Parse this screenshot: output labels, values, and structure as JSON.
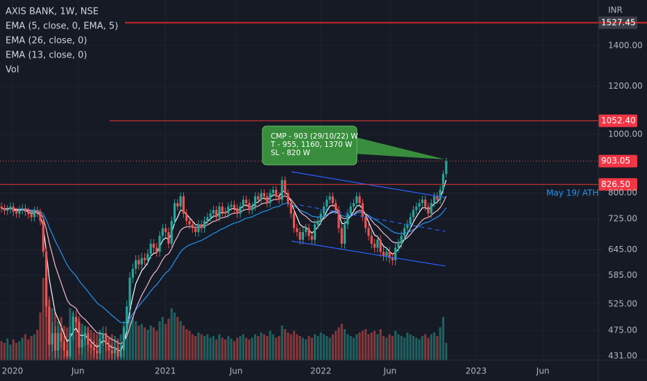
{
  "chart_data": {
    "type": "candlestick",
    "title": "AXIS BANK, 1W, NSE",
    "y_unit": "INR",
    "volume_label": "Vol",
    "up_color": "#26a69a",
    "down_color": "#ef5350",
    "log_scale": true,
    "grid": true,
    "ylim": [
      424,
      1665
    ],
    "yticks": [
      {
        "value": 431,
        "label": "431.00"
      },
      {
        "value": 475,
        "label": "475.00"
      },
      {
        "value": 525,
        "label": "525.00"
      },
      {
        "value": 585,
        "label": "585.00"
      },
      {
        "value": 645,
        "label": "645.00"
      },
      {
        "value": 725,
        "label": "725.00"
      },
      {
        "value": 800,
        "label": "800.00"
      },
      {
        "value": 1000,
        "label": "1000.00"
      },
      {
        "value": 1200,
        "label": "1200.00"
      },
      {
        "value": 1400,
        "label": "1400.00"
      }
    ],
    "xlim": [
      -0.5,
      200
    ],
    "xticks": [
      {
        "value": 3.7,
        "label": "2020"
      },
      {
        "value": 25.6,
        "label": "Jun"
      },
      {
        "value": 54.9,
        "label": "2021"
      },
      {
        "value": 78.6,
        "label": "Jun"
      },
      {
        "value": 107,
        "label": "2022"
      },
      {
        "value": 130.2,
        "label": "Jun"
      },
      {
        "value": 159,
        "label": "2023"
      },
      {
        "value": 181.4,
        "label": "Jun"
      }
    ],
    "open": [
      760,
      755,
      748,
      752,
      760,
      745,
      740,
      750,
      755,
      745,
      738,
      730,
      748,
      742,
      720,
      640,
      520,
      450,
      470,
      440,
      470,
      455,
      440,
      430,
      470,
      500,
      490,
      445,
      460,
      470,
      450,
      445,
      440,
      435,
      460,
      470,
      450,
      440,
      435,
      445,
      430,
      440,
      480,
      520,
      580,
      600,
      620,
      610,
      625,
      620,
      635,
      660,
      650,
      640,
      680,
      700,
      690,
      660,
      720,
      770,
      760,
      790,
      740,
      720,
      710,
      700,
      690,
      710,
      700,
      720,
      730,
      740,
      750,
      730,
      760,
      745,
      740,
      760,
      765,
      755,
      740,
      760,
      780,
      770,
      750,
      760,
      790,
      780,
      800,
      790,
      770,
      800,
      810,
      790,
      780,
      840,
      800,
      770,
      740,
      700,
      690,
      670,
      690,
      700,
      680,
      670,
      710,
      720,
      740,
      760,
      780,
      790,
      770,
      750,
      700,
      660,
      710,
      740,
      760,
      770,
      790,
      770,
      730,
      700,
      680,
      660,
      650,
      670,
      640,
      630,
      640,
      625,
      620,
      650,
      660,
      680,
      700,
      710,
      730,
      750,
      760,
      770,
      780,
      760,
      740,
      770,
      790,
      780,
      810,
      860
    ],
    "high": [
      772,
      767,
      764,
      772,
      772,
      757,
      762,
      767,
      767,
      757,
      750,
      760,
      760,
      754,
      732,
      652,
      540,
      490,
      482,
      482,
      482,
      467,
      452,
      482,
      512,
      512,
      502,
      472,
      482,
      482,
      462,
      457,
      452,
      472,
      482,
      482,
      462,
      452,
      457,
      457,
      452,
      492,
      532,
      592,
      612,
      632,
      632,
      637,
      637,
      647,
      672,
      672,
      662,
      692,
      712,
      712,
      702,
      732,
      782,
      782,
      802,
      802,
      752,
      732,
      722,
      712,
      722,
      722,
      732,
      742,
      752,
      762,
      762,
      772,
      772,
      757,
      772,
      777,
      777,
      767,
      772,
      792,
      792,
      782,
      772,
      802,
      802,
      812,
      812,
      802,
      812,
      822,
      822,
      802,
      852,
      852,
      812,
      782,
      752,
      712,
      702,
      702,
      712,
      712,
      692,
      722,
      732,
      752,
      772,
      792,
      802,
      802,
      782,
      762,
      712,
      722,
      752,
      772,
      782,
      802,
      802,
      782,
      742,
      712,
      692,
      672,
      682,
      682,
      652,
      652,
      652,
      637,
      662,
      672,
      692,
      712,
      722,
      742,
      762,
      772,
      782,
      792,
      792,
      772,
      782,
      802,
      802,
      822,
      872,
      915
    ],
    "low": [
      743,
      736,
      736,
      740,
      733,
      728,
      728,
      738,
      733,
      726,
      718,
      718,
      730,
      708,
      628,
      500,
      430,
      438,
      428,
      428,
      443,
      428,
      426,
      426,
      458,
      478,
      433,
      433,
      448,
      438,
      433,
      428,
      426,
      426,
      448,
      438,
      428,
      426,
      426,
      426,
      426,
      428,
      468,
      508,
      568,
      588,
      598,
      598,
      608,
      608,
      623,
      638,
      628,
      628,
      668,
      678,
      648,
      648,
      708,
      748,
      748,
      728,
      708,
      698,
      688,
      678,
      678,
      688,
      688,
      708,
      718,
      728,
      718,
      718,
      733,
      728,
      728,
      748,
      743,
      728,
      728,
      748,
      758,
      738,
      738,
      748,
      768,
      768,
      778,
      758,
      758,
      788,
      778,
      768,
      768,
      788,
      758,
      728,
      688,
      678,
      658,
      658,
      678,
      668,
      658,
      658,
      698,
      708,
      728,
      748,
      768,
      758,
      738,
      688,
      648,
      648,
      698,
      728,
      748,
      758,
      758,
      718,
      688,
      668,
      648,
      638,
      638,
      628,
      618,
      618,
      613,
      608,
      608,
      638,
      648,
      668,
      688,
      698,
      718,
      738,
      748,
      758,
      748,
      728,
      728,
      758,
      768,
      768,
      798,
      848
    ],
    "close": [
      755,
      748,
      752,
      760,
      745,
      740,
      750,
      755,
      745,
      738,
      730,
      748,
      742,
      720,
      640,
      520,
      450,
      470,
      440,
      470,
      455,
      440,
      430,
      470,
      500,
      490,
      445,
      460,
      470,
      450,
      445,
      440,
      435,
      460,
      470,
      450,
      440,
      435,
      445,
      430,
      440,
      480,
      520,
      580,
      600,
      620,
      610,
      625,
      620,
      635,
      660,
      650,
      640,
      680,
      700,
      690,
      660,
      720,
      770,
      760,
      790,
      740,
      720,
      710,
      700,
      690,
      710,
      700,
      720,
      730,
      740,
      750,
      730,
      760,
      745,
      740,
      760,
      765,
      755,
      740,
      760,
      780,
      770,
      750,
      760,
      790,
      780,
      800,
      790,
      770,
      800,
      810,
      790,
      780,
      840,
      800,
      770,
      740,
      700,
      690,
      670,
      690,
      700,
      680,
      670,
      710,
      720,
      740,
      760,
      780,
      790,
      770,
      750,
      700,
      660,
      710,
      740,
      760,
      770,
      790,
      770,
      730,
      700,
      680,
      660,
      650,
      670,
      640,
      630,
      640,
      625,
      620,
      650,
      660,
      680,
      700,
      710,
      730,
      750,
      760,
      770,
      780,
      760,
      740,
      770,
      790,
      780,
      810,
      860,
      903.05
    ],
    "volume": [
      22,
      20,
      25,
      18,
      24,
      20,
      22,
      26,
      30,
      24,
      28,
      30,
      35,
      55,
      95,
      100,
      70,
      60,
      55,
      45,
      50,
      40,
      38,
      60,
      55,
      50,
      48,
      42,
      40,
      38,
      35,
      32,
      30,
      35,
      30,
      28,
      26,
      30,
      28,
      25,
      30,
      40,
      55,
      62,
      50,
      45,
      40,
      42,
      38,
      35,
      40,
      38,
      34,
      45,
      50,
      42,
      48,
      60,
      55,
      50,
      45,
      40,
      36,
      34,
      30,
      28,
      32,
      30,
      28,
      30,
      26,
      28,
      24,
      30,
      26,
      24,
      28,
      25,
      22,
      26,
      28,
      30,
      26,
      24,
      26,
      30,
      28,
      32,
      30,
      28,
      34,
      30,
      26,
      28,
      40,
      36,
      32,
      30,
      34,
      30,
      28,
      26,
      24,
      28,
      26,
      30,
      28,
      32,
      30,
      28,
      26,
      30,
      34,
      38,
      42,
      36,
      30,
      28,
      26,
      30,
      32,
      34,
      36,
      30,
      32,
      34,
      30,
      36,
      28,
      26,
      30,
      28,
      34,
      30,
      28,
      26,
      32,
      30,
      28,
      26,
      24,
      28,
      30,
      26,
      30,
      32,
      28,
      38,
      50,
      20
    ],
    "indicators": [
      {
        "name": "EMA (5, close, 0, EMA, 5)",
        "period": 5,
        "color": "#ffffff"
      },
      {
        "name": "EMA (26, close, 0)",
        "period": 26,
        "color": "#2196f3"
      },
      {
        "name": "EMA (13, close, 0)",
        "period": 13,
        "color": "#f8bbd0"
      }
    ],
    "levels": [
      {
        "value": 1527.45,
        "label": "1527.45"
      },
      {
        "value": 1052.4,
        "label": "1052.40"
      },
      {
        "value": 826.5,
        "label": "826.50"
      }
    ],
    "last_price": {
      "value": 903.05,
      "label": "903.05"
    },
    "ath_note": "May 19/ ATH",
    "annotation": [
      "CMP - 903 (29/10/22) W",
      "T - 955, 1160, 1370 W",
      "SL - 820 W"
    ]
  }
}
